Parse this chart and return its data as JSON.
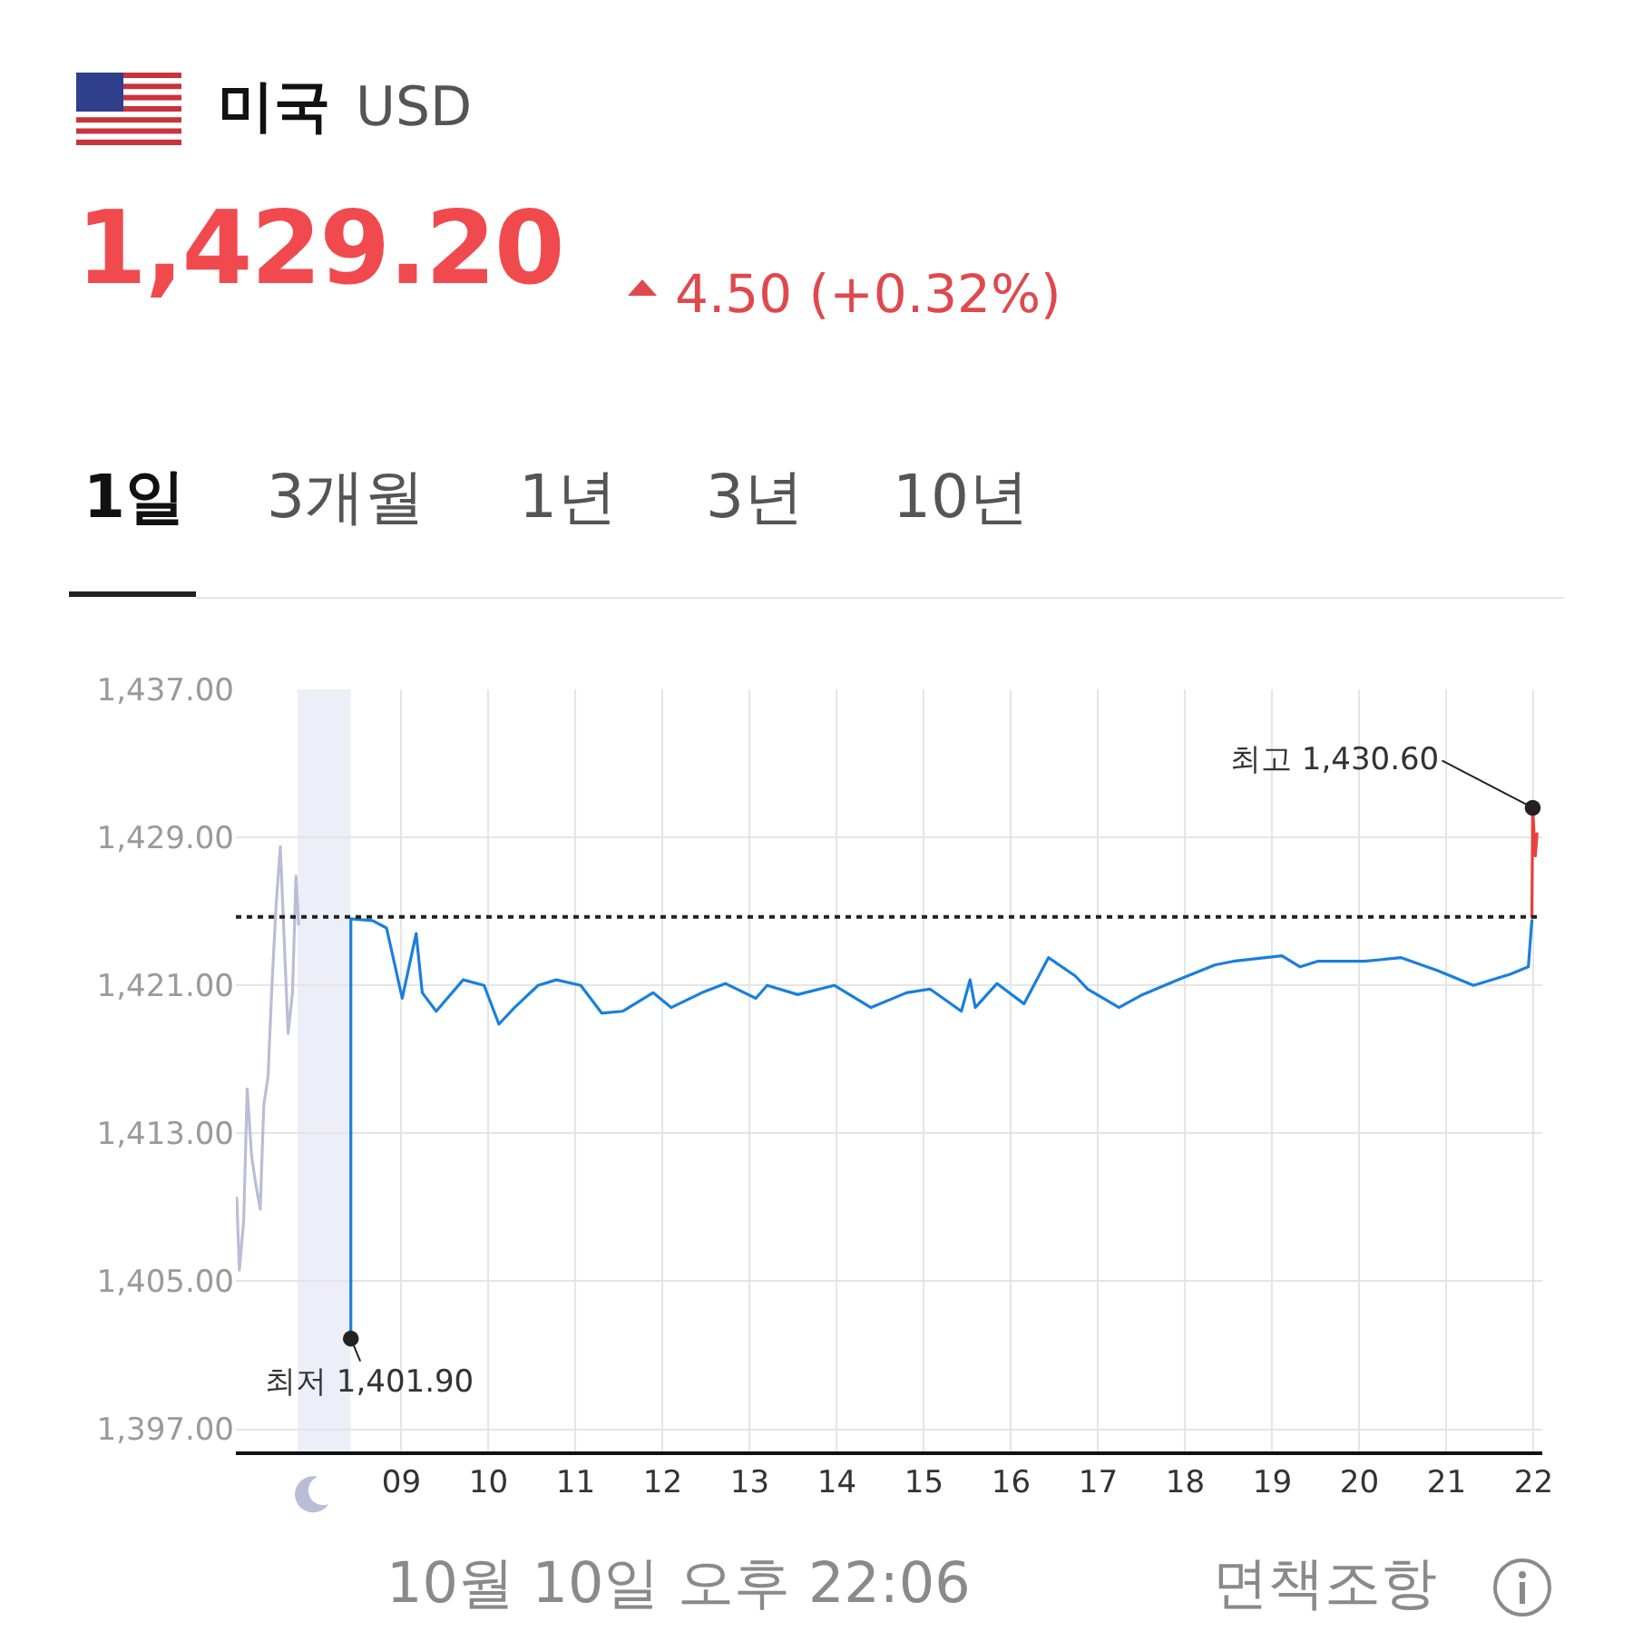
{
  "chart_data": {
    "type": "line",
    "title": "미국",
    "subtitle": "USD",
    "annotations": [
      "1,429.20",
      "4.50 (+0.32%)",
      "1일",
      "3개월",
      "1년",
      "3년",
      "10년",
      "10월 10일 오후 22:06",
      "면책조항",
      {
        "text": "최저 1,401.90",
        "x": 8.42,
        "y": 1401.9
      },
      {
        "text": "최고 1,430.60",
        "x": 21.99,
        "y": 1430.6
      }
    ],
    "series": [
      {
        "color": "#b9bdd6",
        "x": [
          7.11,
          7.14,
          7.19,
          7.23,
          7.28,
          7.33,
          7.38,
          7.42,
          7.47,
          7.51,
          7.56,
          7.61,
          7.65,
          7.7,
          7.75,
          7.79,
          7.82
        ],
        "values": [
          1409.5,
          1405.6,
          1408.3,
          1415.4,
          1411.8,
          1410.2,
          1408.9,
          1414.5,
          1416.1,
          1420.6,
          1425.2,
          1428.5,
          1424.0,
          1418.4,
          1420.6,
          1426.9,
          1424.3
        ]
      },
      {
        "color": "#1a7fdc",
        "x": [
          8.42,
          8.42,
          8.67,
          8.83,
          9.01,
          9.17,
          9.24,
          9.4,
          9.71,
          9.95,
          10.12,
          10.3,
          10.57,
          10.78,
          11.06,
          11.3,
          11.54,
          11.89,
          12.1,
          12.45,
          12.72,
          13.07,
          13.2,
          13.55,
          13.97,
          14.39,
          14.8,
          15.07,
          15.43,
          15.53,
          15.59,
          15.84,
          16.15,
          16.43,
          16.74,
          16.88,
          17.24,
          17.51,
          17.92,
          18.34,
          18.55,
          19.11,
          19.32,
          19.52,
          20.06,
          20.48,
          20.9,
          21.31,
          21.73,
          21.94,
          21.98
        ],
        "values": [
          1401.9,
          1424.6,
          1424.5,
          1424.1,
          1420.3,
          1423.8,
          1420.6,
          1419.6,
          1421.3,
          1421.0,
          1418.9,
          1419.8,
          1421.0,
          1421.3,
          1421.0,
          1419.5,
          1419.6,
          1420.6,
          1419.8,
          1420.6,
          1421.1,
          1420.3,
          1421.0,
          1420.5,
          1421.0,
          1419.8,
          1420.6,
          1420.8,
          1419.6,
          1421.3,
          1419.8,
          1421.1,
          1420.0,
          1422.5,
          1421.5,
          1420.8,
          1419.8,
          1420.5,
          1421.3,
          1422.1,
          1422.3,
          1422.6,
          1422.0,
          1422.3,
          1422.3,
          1422.5,
          1421.8,
          1421.0,
          1421.6,
          1422.0,
          1424.5
        ]
      },
      {
        "color": "#e8413e",
        "x": [
          21.98,
          21.99,
          22.02,
          22.04
        ],
        "values": [
          1424.7,
          1430.6,
          1428.0,
          1429.2
        ]
      }
    ],
    "xlim": [
      7.1,
      22.1
    ],
    "xticks": [
      {
        "value": 9,
        "label": "09"
      },
      10,
      11,
      12,
      13,
      14,
      15,
      16,
      17,
      18,
      19,
      20,
      21,
      22
    ],
    "ylim": [
      1395.8,
      1437
    ],
    "yticks": [
      {
        "value": 1397,
        "label": "1,397.00"
      },
      {
        "value": 1405,
        "label": "1,405.00"
      },
      {
        "value": 1413,
        "label": "1,413.00"
      },
      {
        "value": 1421,
        "label": "1,421.00"
      },
      {
        "value": 1429,
        "label": "1,429.00"
      },
      {
        "value": 1437,
        "label": "1,437.00"
      }
    ],
    "ref_lines": [
      {
        "axis": "y",
        "value": 1424.7,
        "color": "#222222",
        "line_style": "dotted"
      }
    ],
    "bands": [
      {
        "axis": "x",
        "from": 7.81,
        "to": 8.42,
        "color": "#eceef8"
      }
    ],
    "grid": true
  }
}
